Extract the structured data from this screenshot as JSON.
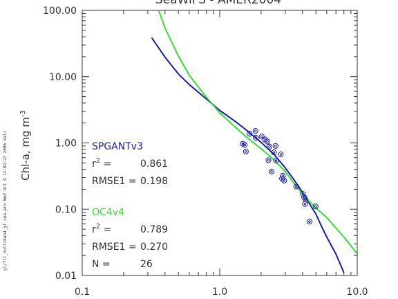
{
  "chart_data": {
    "type": "scatter",
    "title": "SeaWiFS - AMER2004",
    "ylabel_main": "Chl-a, mg m",
    "ylabel_exp": "-3",
    "x_scale": "log",
    "y_scale": "log",
    "xlim": [
      0.1,
      10.0
    ],
    "ylim": [
      0.01,
      100.0
    ],
    "x_ticks": [
      {
        "value": 0.1,
        "label": "0.1"
      },
      {
        "value": 1.0,
        "label": "1.0"
      },
      {
        "value": 10.0,
        "label": "10.0"
      }
    ],
    "y_ticks": [
      {
        "value": 0.01,
        "label": "0.01"
      },
      {
        "value": 0.1,
        "label": "0.10"
      },
      {
        "value": 1.0,
        "label": "1.00"
      },
      {
        "value": 10.0,
        "label": "10.00"
      },
      {
        "value": 100.0,
        "label": "100.00"
      }
    ],
    "grid": false,
    "points": [
      {
        "x": 1.47,
        "y": 0.97
      },
      {
        "x": 1.52,
        "y": 0.93
      },
      {
        "x": 1.55,
        "y": 0.74
      },
      {
        "x": 1.65,
        "y": 1.38
      },
      {
        "x": 1.82,
        "y": 1.52
      },
      {
        "x": 1.83,
        "y": 1.2
      },
      {
        "x": 2.02,
        "y": 1.25
      },
      {
        "x": 2.13,
        "y": 1.13
      },
      {
        "x": 2.22,
        "y": 1.05
      },
      {
        "x": 2.26,
        "y": 0.55
      },
      {
        "x": 2.3,
        "y": 0.88
      },
      {
        "x": 2.38,
        "y": 0.37
      },
      {
        "x": 2.48,
        "y": 0.72
      },
      {
        "x": 2.55,
        "y": 0.9
      },
      {
        "x": 2.57,
        "y": 0.54
      },
      {
        "x": 2.78,
        "y": 0.67
      },
      {
        "x": 2.84,
        "y": 0.29
      },
      {
        "x": 2.88,
        "y": 0.32
      },
      {
        "x": 2.94,
        "y": 0.27
      },
      {
        "x": 3.6,
        "y": 0.22
      },
      {
        "x": 4.02,
        "y": 0.17
      },
      {
        "x": 4.12,
        "y": 0.15
      },
      {
        "x": 4.17,
        "y": 0.12
      },
      {
        "x": 4.2,
        "y": 0.14
      },
      {
        "x": 4.5,
        "y": 0.065
      },
      {
        "x": 4.98,
        "y": 0.11
      }
    ],
    "series": [
      {
        "name": "SPGANTv3",
        "color": "#1a1aa8",
        "stats": [
          {
            "label_main": "r",
            "label_exp": "2",
            "label_rest": " =",
            "value": "0.861"
          },
          {
            "label_main": "RMSE1",
            "label_exp": "",
            "label_rest": " =",
            "value": "0.198"
          }
        ],
        "curve": [
          {
            "x": 0.32,
            "y": 38.8
          },
          {
            "x": 0.4,
            "y": 19.7
          },
          {
            "x": 0.5,
            "y": 11.0
          },
          {
            "x": 0.6,
            "y": 7.6
          },
          {
            "x": 0.8,
            "y": 4.6
          },
          {
            "x": 1.0,
            "y": 3.1
          },
          {
            "x": 1.3,
            "y": 2.1
          },
          {
            "x": 1.6,
            "y": 1.5
          },
          {
            "x": 2.0,
            "y": 1.02
          },
          {
            "x": 2.5,
            "y": 0.66
          },
          {
            "x": 3.0,
            "y": 0.42
          },
          {
            "x": 3.5,
            "y": 0.27
          },
          {
            "x": 4.0,
            "y": 0.18
          },
          {
            "x": 4.5,
            "y": 0.12
          },
          {
            "x": 5.0,
            "y": 0.085
          },
          {
            "x": 5.5,
            "y": 0.055
          },
          {
            "x": 6.0,
            "y": 0.038
          },
          {
            "x": 7.0,
            "y": 0.021
          },
          {
            "x": 8.0,
            "y": 0.011
          }
        ]
      },
      {
        "name": "OC4v4",
        "color": "#33dd33",
        "stats": [
          {
            "label_main": "r",
            "label_exp": "2",
            "label_rest": " =",
            "value": "0.789"
          },
          {
            "label_main": "RMSE1",
            "label_exp": "",
            "label_rest": " =",
            "value": "0.270"
          },
          {
            "label_main": "N",
            "label_exp": "",
            "label_rest": " =",
            "value": "26"
          }
        ],
        "curve": [
          {
            "x": 0.36,
            "y": 100.0
          },
          {
            "x": 0.4,
            "y": 54.0
          },
          {
            "x": 0.5,
            "y": 20.5
          },
          {
            "x": 0.6,
            "y": 10.5
          },
          {
            "x": 0.8,
            "y": 4.9
          },
          {
            "x": 1.0,
            "y": 2.85
          },
          {
            "x": 1.3,
            "y": 1.72
          },
          {
            "x": 1.6,
            "y": 1.18
          },
          {
            "x": 2.0,
            "y": 0.82
          },
          {
            "x": 2.5,
            "y": 0.55
          },
          {
            "x": 3.0,
            "y": 0.37
          },
          {
            "x": 3.5,
            "y": 0.24
          },
          {
            "x": 4.0,
            "y": 0.17
          },
          {
            "x": 4.5,
            "y": 0.13
          },
          {
            "x": 5.0,
            "y": 0.105
          },
          {
            "x": 6.0,
            "y": 0.075
          },
          {
            "x": 7.0,
            "y": 0.052
          },
          {
            "x": 8.0,
            "y": 0.038
          },
          {
            "x": 9.0,
            "y": 0.028
          },
          {
            "x": 10.0,
            "y": 0.021
          }
        ]
      }
    ],
    "point_color": "#1a1aa8"
  },
  "side_note": "gl/fit_multiband_gl.sea.pro Wed Oct 4 12:02:27 2006 mali"
}
